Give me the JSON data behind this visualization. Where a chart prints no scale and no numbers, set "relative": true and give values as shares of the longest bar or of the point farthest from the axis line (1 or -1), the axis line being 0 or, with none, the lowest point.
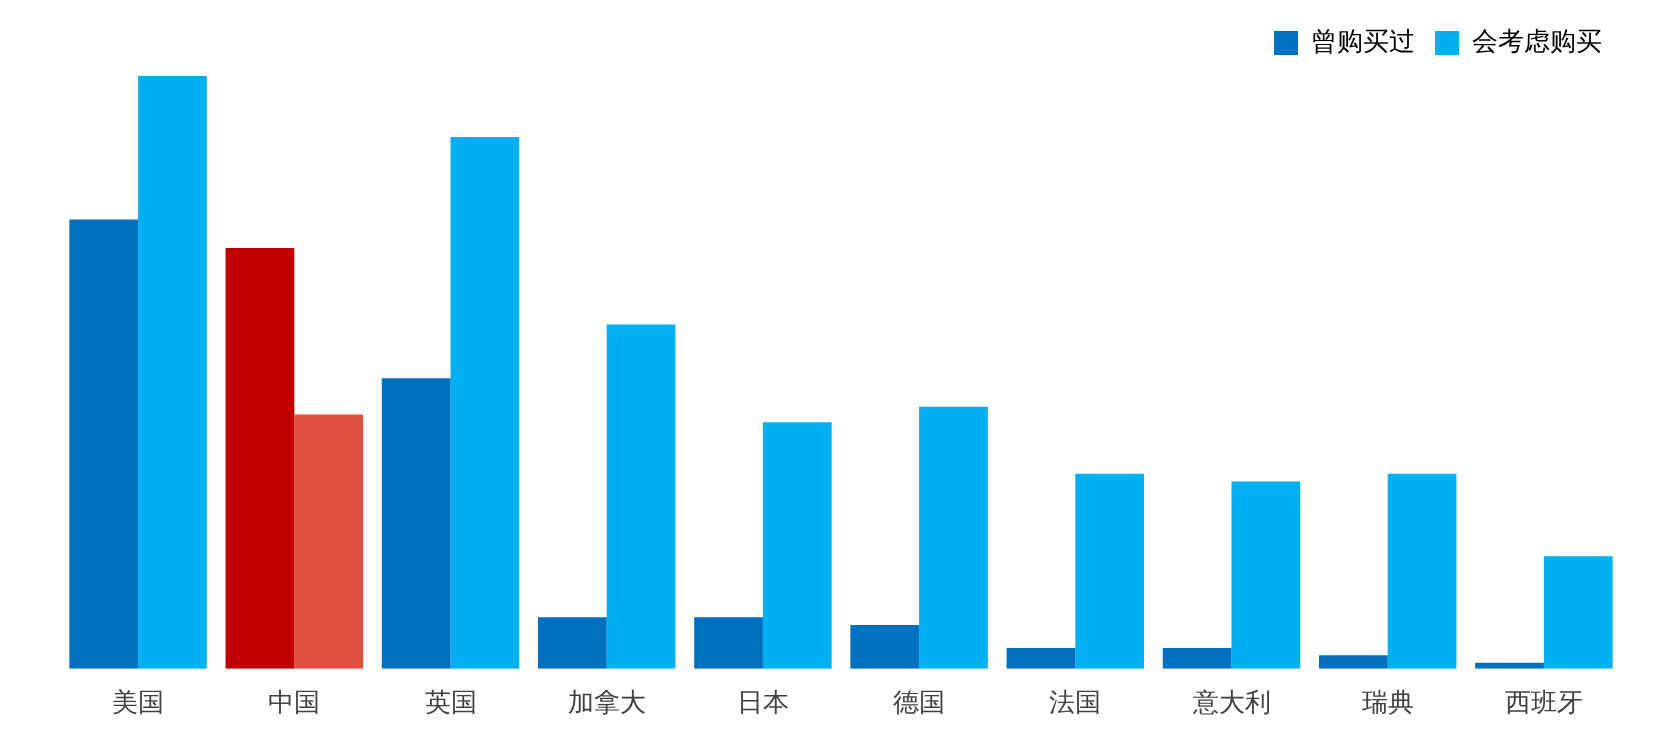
{
  "chart_data": {
    "type": "bar",
    "relative": true,
    "categories": [
      "美国",
      "中国",
      "英国",
      "加拿大",
      "日本",
      "德国",
      "法国",
      "意大利",
      "瑞典",
      "西班牙"
    ],
    "series": [
      {
        "name": "曾购买过",
        "color": "#0070c0",
        "colors": [
          "#0070c0",
          "#c00000",
          "#0070c0",
          "#0070c0",
          "#0070c0",
          "#0070c0",
          "#0070c0",
          "#0070c0",
          "#0070c0",
          "#0070c0"
        ],
        "values": [
          0.758,
          0.71,
          0.49,
          0.087,
          0.087,
          0.074,
          0.035,
          0.035,
          0.023,
          0.01
        ]
      },
      {
        "name": "会考虑购买",
        "color": "#00b0f0",
        "colors": [
          "#00b0f0",
          "#e05040",
          "#00b0f0",
          "#00b0f0",
          "#00b0f0",
          "#00b0f0",
          "#00b0f0",
          "#00b0f0",
          "#00b0f0",
          "#00b0f0"
        ],
        "values": [
          1,
          0.429,
          0.897,
          0.581,
          0.416,
          0.442,
          0.329,
          0.316,
          0.329,
          0.19
        ]
      }
    ],
    "legend": "top right",
    "grid": false
  }
}
